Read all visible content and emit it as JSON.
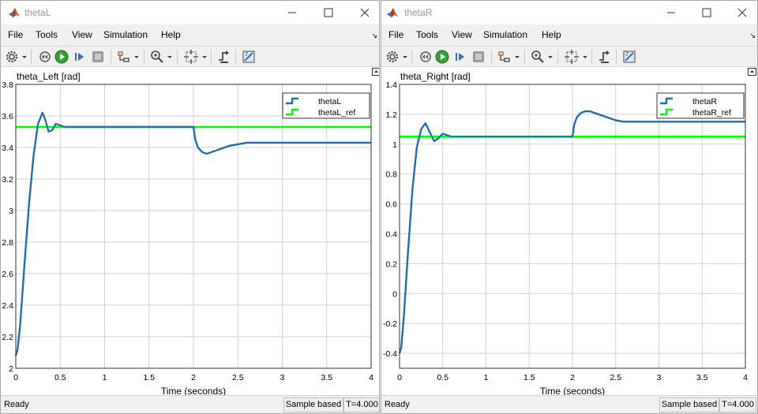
{
  "windows": [
    {
      "title": "thetaL",
      "menu": [
        "File",
        "Tools",
        "View",
        "Simulation",
        "Help"
      ],
      "status": {
        "state": "Ready",
        "mode": "Sample based",
        "time": "T=4.000"
      },
      "chart_data": {
        "type": "line",
        "title": "theta_Left [rad]",
        "xlabel": "Time (seconds)",
        "ylabel": "",
        "xlim": [
          0,
          4
        ],
        "ylim": [
          2.0,
          3.8
        ],
        "xticks": [
          "0",
          "0.5",
          "1",
          "1.5",
          "2",
          "2.5",
          "3",
          "3.5",
          "4"
        ],
        "yticks": [
          "2",
          "2.2",
          "2.4",
          "2.6",
          "2.8",
          "3",
          "3.2",
          "3.4",
          "3.6",
          "3.8"
        ],
        "grid": true,
        "legend_position": "top-right",
        "series": [
          {
            "name": "thetaL",
            "color": "#1f6ead",
            "x": [
              0,
              0.02,
              0.05,
              0.1,
              0.15,
              0.2,
              0.25,
              0.3,
              0.33,
              0.37,
              0.41,
              0.45,
              0.5,
              0.55,
              0.6,
              0.7,
              0.8,
              1.0,
              1.5,
              2.0,
              2.02,
              2.05,
              2.1,
              2.15,
              2.2,
              2.3,
              2.4,
              2.5,
              2.6,
              2.7,
              2.8,
              3.0,
              3.5,
              4.0
            ],
            "y": [
              2.08,
              2.12,
              2.28,
              2.68,
              3.05,
              3.35,
              3.55,
              3.62,
              3.58,
              3.5,
              3.51,
              3.55,
              3.54,
              3.53,
              3.53,
              3.53,
              3.53,
              3.53,
              3.53,
              3.53,
              3.45,
              3.4,
              3.37,
              3.36,
              3.37,
              3.39,
              3.41,
              3.42,
              3.43,
              3.43,
              3.43,
              3.43,
              3.43,
              3.43
            ]
          },
          {
            "name": "thetaL_ref",
            "color": "#00ff00",
            "x": [
              0,
              4
            ],
            "y": [
              3.53,
              3.53
            ]
          }
        ]
      }
    },
    {
      "title": "thetaR",
      "menu": [
        "File",
        "Tools",
        "View",
        "Simulation",
        "Help"
      ],
      "status": {
        "state": "Ready",
        "mode": "Sample based",
        "time": "T=4.000"
      },
      "chart_data": {
        "type": "line",
        "title": "theta_Right [rad]",
        "xlabel": "Time (seconds)",
        "ylabel": "",
        "xlim": [
          0,
          4
        ],
        "ylim": [
          -0.5,
          1.4
        ],
        "xticks": [
          "0",
          "0.5",
          "1",
          "1.5",
          "2",
          "2.5",
          "3",
          "3.5",
          "4"
        ],
        "yticks": [
          "-0.4",
          "-0.2",
          "0",
          "0.2",
          "0.4",
          "0.6",
          "0.8",
          "1",
          "1.2",
          "1.4"
        ],
        "grid": true,
        "legend_position": "top-right",
        "series": [
          {
            "name": "thetaR",
            "color": "#1f6ead",
            "x": [
              0,
              0.02,
              0.05,
              0.1,
              0.15,
              0.2,
              0.25,
              0.3,
              0.35,
              0.4,
              0.45,
              0.5,
              0.55,
              0.6,
              0.7,
              0.8,
              1.0,
              1.5,
              2.0,
              2.02,
              2.05,
              2.1,
              2.15,
              2.2,
              2.3,
              2.4,
              2.5,
              2.6,
              2.7,
              2.8,
              3.0,
              3.5,
              4.0
            ],
            "y": [
              -0.4,
              -0.36,
              -0.15,
              0.3,
              0.7,
              0.98,
              1.1,
              1.14,
              1.08,
              1.02,
              1.04,
              1.07,
              1.06,
              1.05,
              1.05,
              1.05,
              1.05,
              1.05,
              1.05,
              1.13,
              1.18,
              1.21,
              1.22,
              1.22,
              1.2,
              1.18,
              1.16,
              1.15,
              1.15,
              1.15,
              1.15,
              1.15,
              1.15
            ]
          },
          {
            "name": "thetaR_ref",
            "color": "#00ff00",
            "x": [
              0,
              4
            ],
            "y": [
              1.05,
              1.05
            ]
          }
        ]
      }
    }
  ]
}
